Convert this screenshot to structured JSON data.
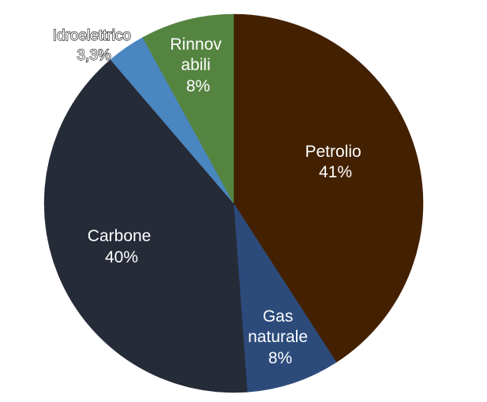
{
  "chart_data": {
    "type": "pie",
    "title": "",
    "slices": [
      {
        "category": "Petrolio",
        "value": 41,
        "value_label": "41%",
        "color": "#432000"
      },
      {
        "category": "Gas naturale",
        "value": 8,
        "value_label": "8%",
        "color": "#2c4b7b"
      },
      {
        "category": "Carbone",
        "value": 40,
        "value_label": "40%",
        "color": "#262b38"
      },
      {
        "category": "Idroelettrico",
        "value": 3.3,
        "value_label": "3,3%",
        "color": "#4a86c0"
      },
      {
        "category": "Rinnovabili",
        "value": 8,
        "value_label": "8%",
        "color": "#558441"
      }
    ],
    "label_lines": {
      "petrolio": [
        "Petrolio",
        "41%"
      ],
      "gas": [
        "Gas",
        "naturale",
        "8%"
      ],
      "carbone": [
        "Carbone",
        "40%"
      ],
      "idro": [
        "Idroelettrico",
        "3,3%"
      ],
      "rinnov": [
        "Rinnov",
        "abili",
        "8%"
      ]
    }
  }
}
